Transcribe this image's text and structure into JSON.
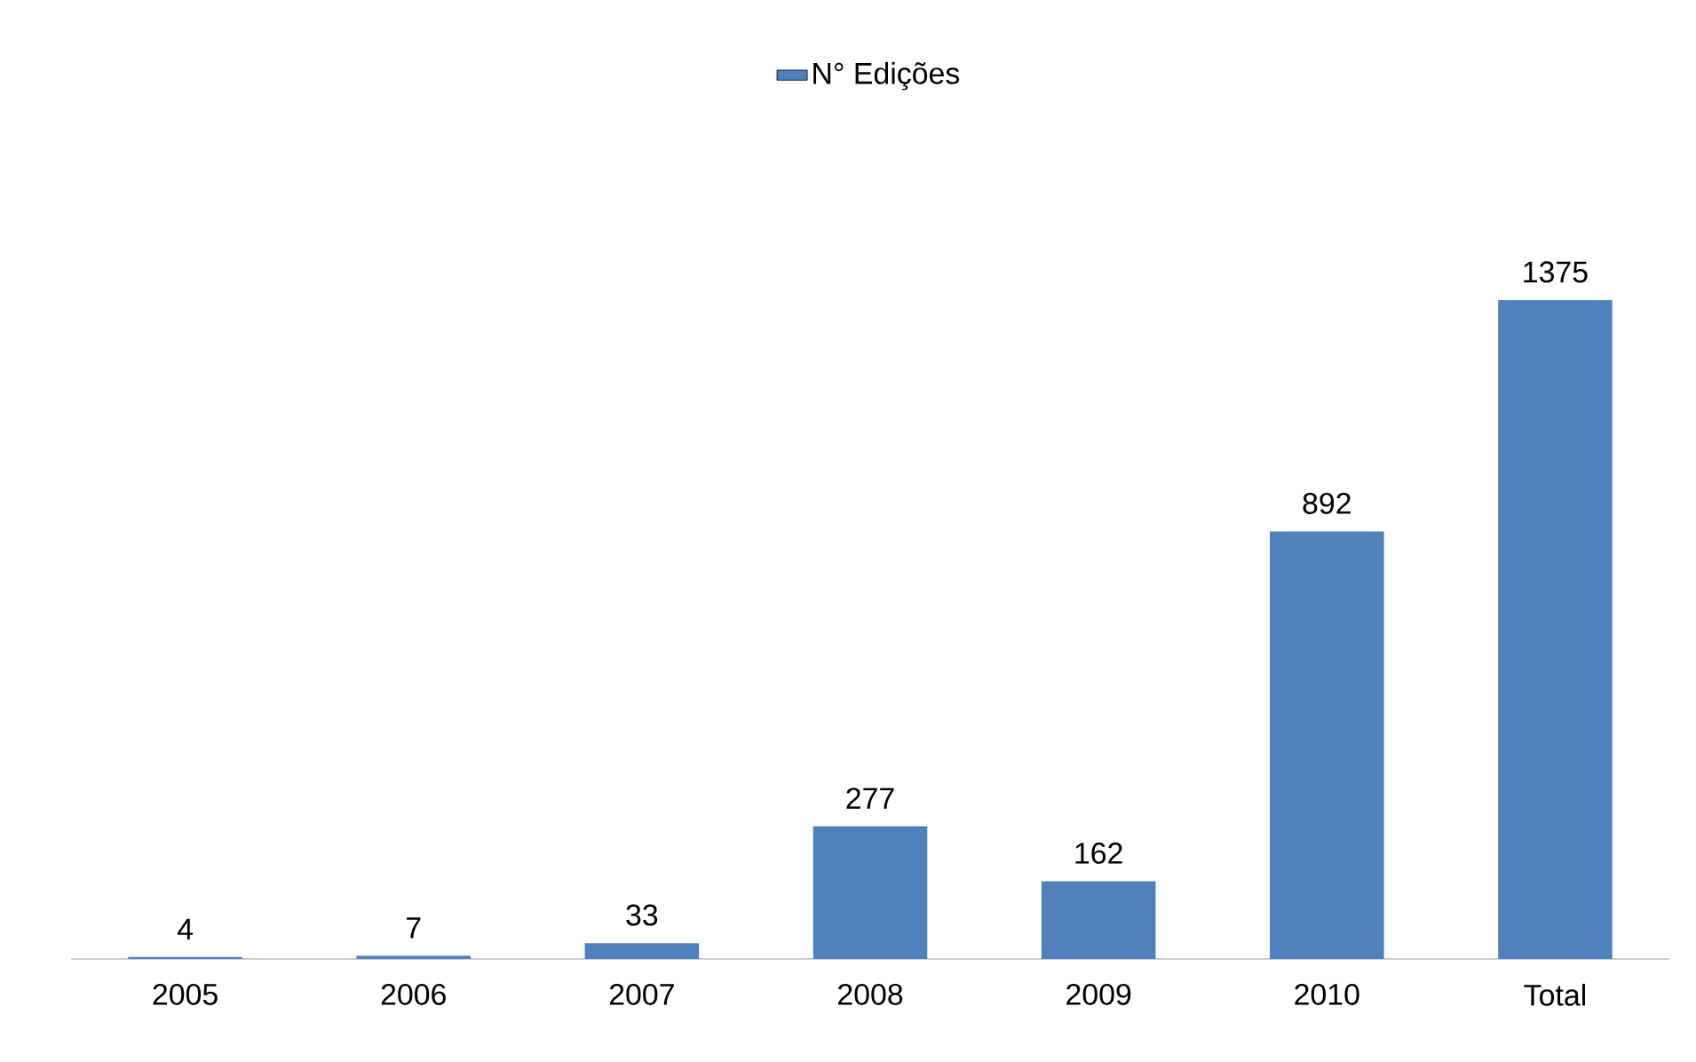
{
  "chart_data": {
    "type": "bar",
    "categories": [
      "2005",
      "2006",
      "2007",
      "2008",
      "2009",
      "2010",
      "Total"
    ],
    "series": [
      {
        "name": "N° Edições",
        "color": "#4f81bd",
        "values": [
          4,
          7,
          33,
          277,
          162,
          892,
          1375
        ]
      }
    ],
    "data_labels": true,
    "legend": "top"
  }
}
